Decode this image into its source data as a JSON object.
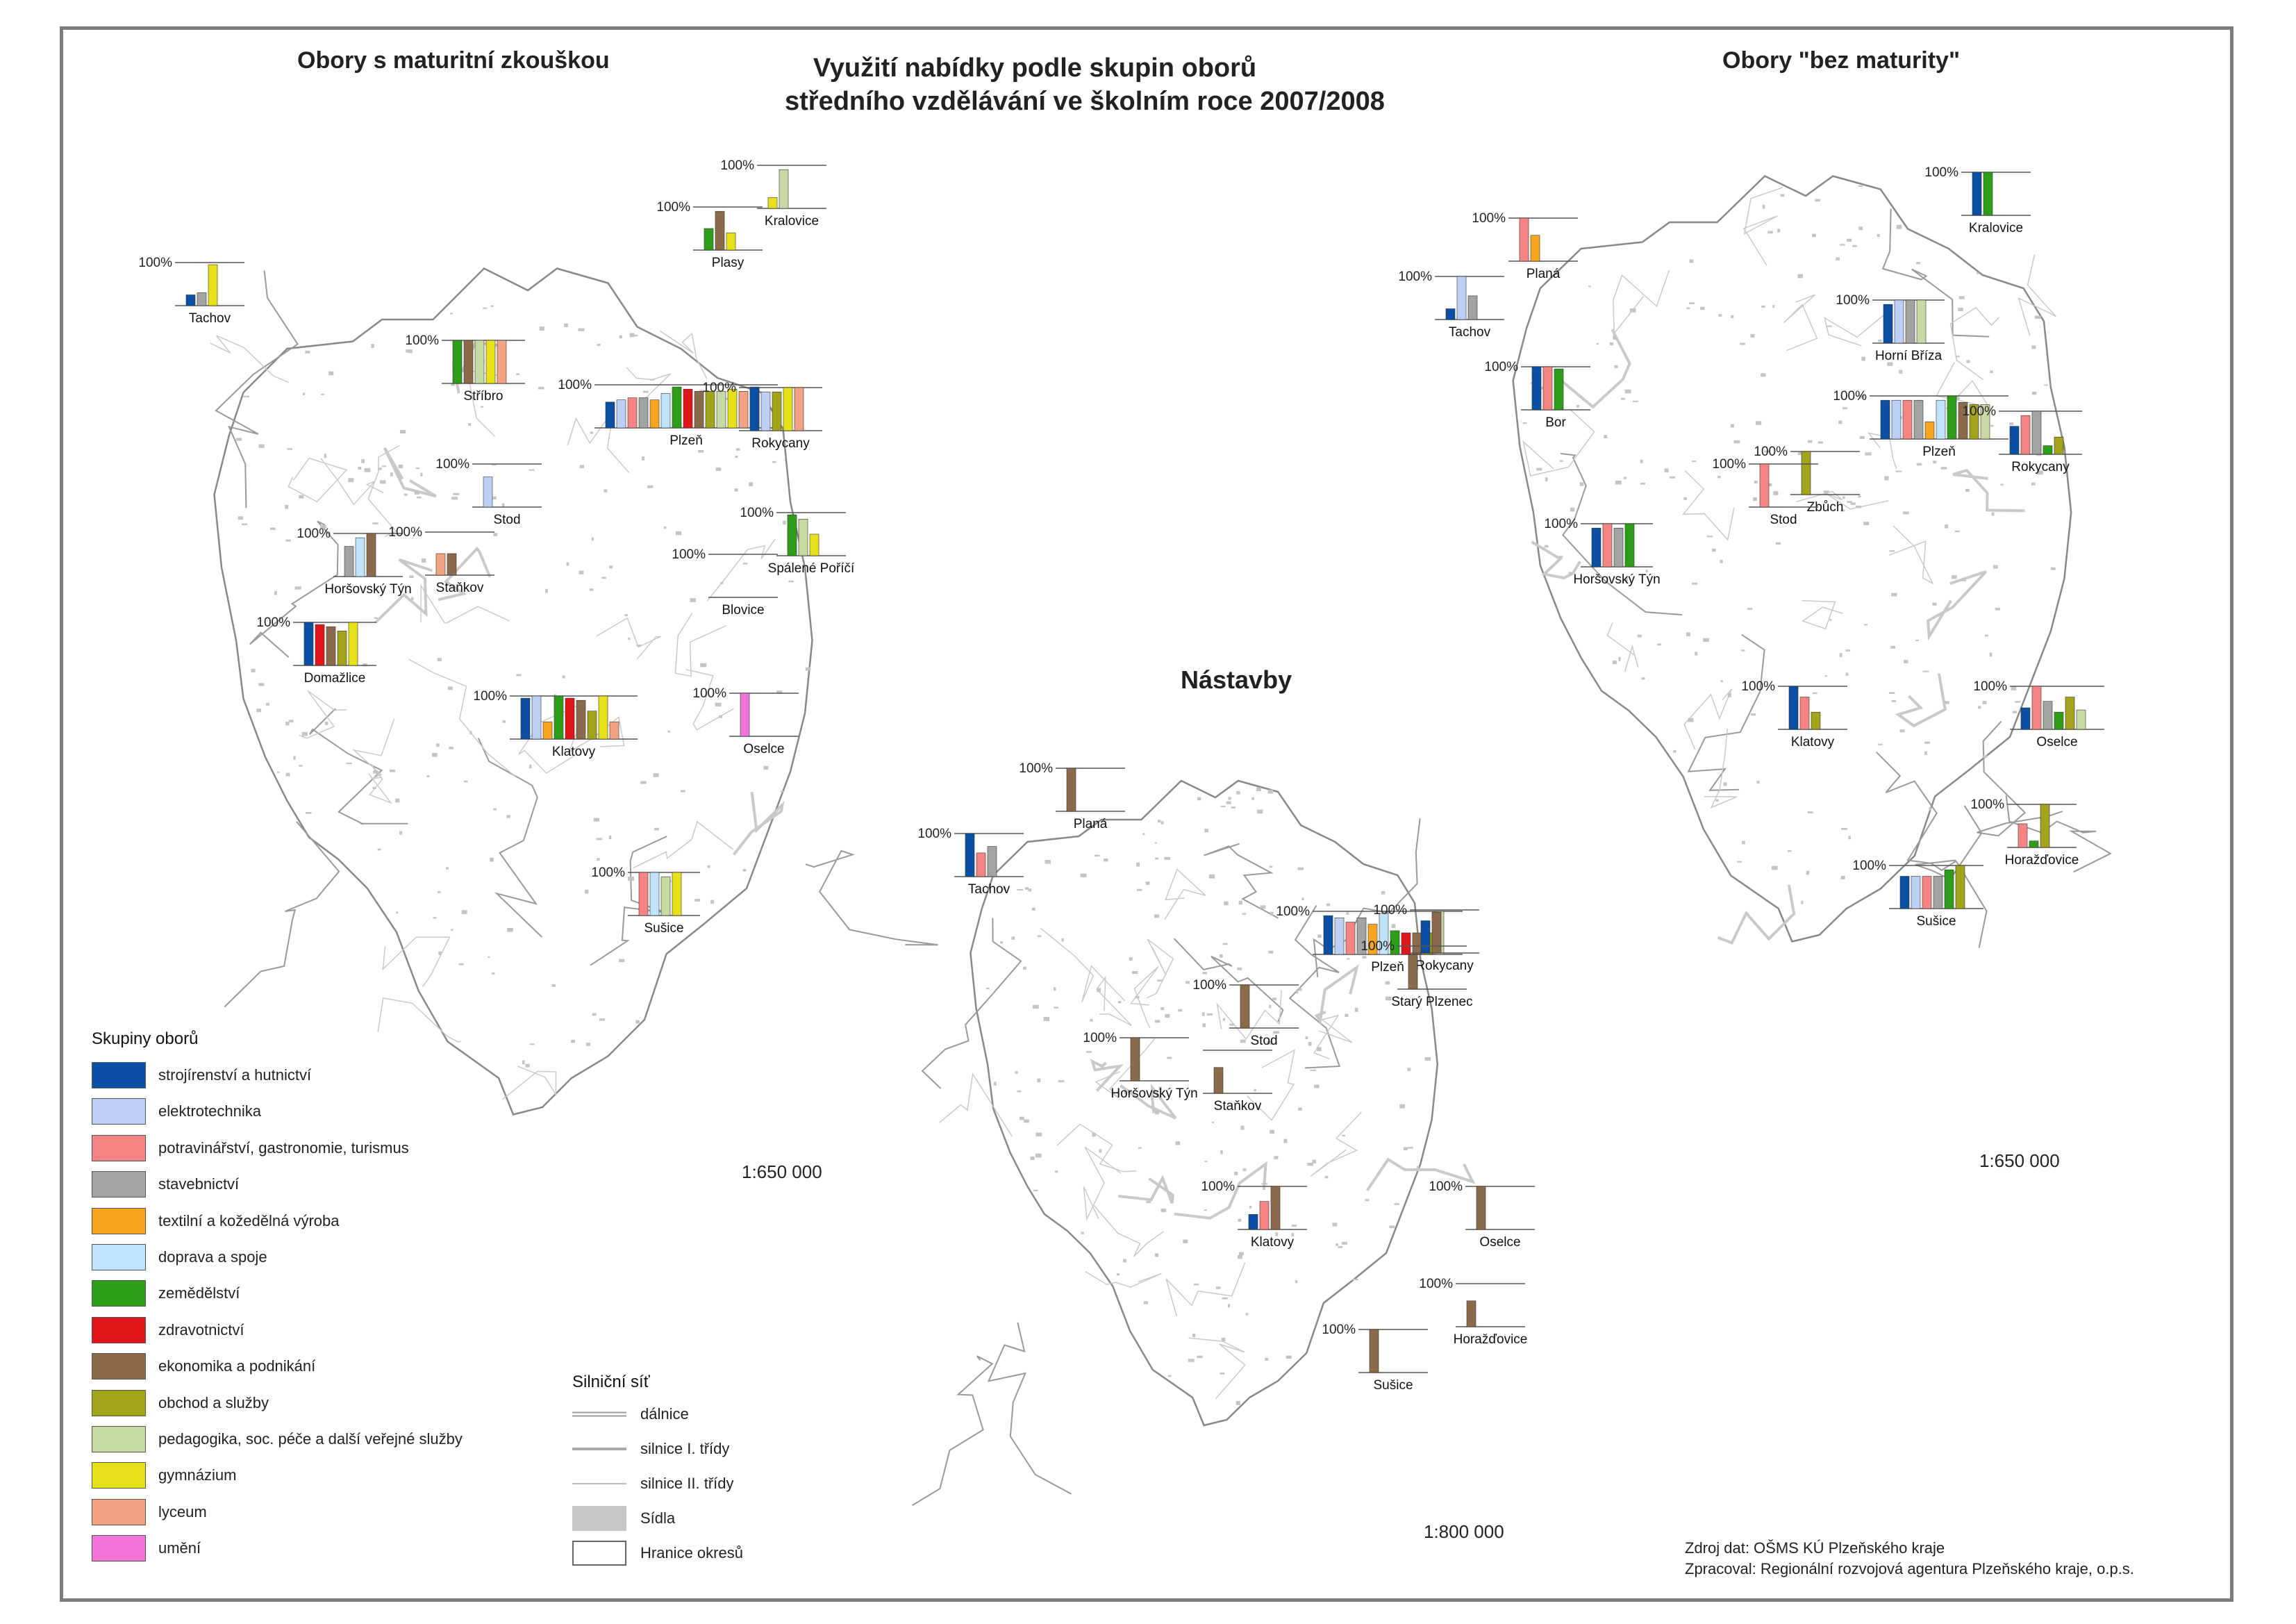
{
  "title": {
    "line1": "Využití nabídky podle skupin oborů",
    "line2": "středního vzdělávání ve školním roce 2007/2008"
  },
  "maps": {
    "maturita": {
      "title": "Obory s maturitní zkouškou",
      "scale": "1:650 000"
    },
    "bez_maturity": {
      "title": "Obory \"bez maturity\"",
      "scale": "1:650 000"
    },
    "nastavby": {
      "title": "Nástavby",
      "scale": "1:800 000"
    }
  },
  "legend": {
    "title": "Skupiny oborů",
    "groups": [
      {
        "label": "strojírenství a hutnictví",
        "color": "#0a4fa3"
      },
      {
        "label": "elektrotechnika",
        "color": "#bccff5"
      },
      {
        "label": "potravinářství, gastronomie, turismus",
        "color": "#f58585"
      },
      {
        "label": "stavebnictví",
        "color": "#a3a3a3"
      },
      {
        "label": "textilní a kožedělná výroba",
        "color": "#f7a520"
      },
      {
        "label": "doprava a spoje",
        "color": "#bfe3fa"
      },
      {
        "label": "zemědělství",
        "color": "#2e9e1a"
      },
      {
        "label": "zdravotnictví",
        "color": "#e0161b"
      },
      {
        "label": "ekonomika a podnikání",
        "color": "#8b6b4a"
      },
      {
        "label": "obchod a služby",
        "color": "#a3a31c"
      },
      {
        "label": "pedagogika, soc. péče a další veřejné služby",
        "color": "#c9d9a3"
      },
      {
        "label": "gymnázium",
        "color": "#e8e01a"
      },
      {
        "label": "lyceum",
        "color": "#f2a383"
      },
      {
        "label": "umění",
        "color": "#f075d6"
      }
    ]
  },
  "roads": {
    "title": "Silniční síť",
    "items": [
      {
        "label": "dálnice",
        "kind": "motorway"
      },
      {
        "label": "silnice I. třídy",
        "kind": "class1"
      },
      {
        "label": "silnice II. třídy",
        "kind": "class2"
      },
      {
        "label": "Sídla",
        "kind": "settlement"
      },
      {
        "label": "Hranice okresů",
        "kind": "boundary"
      }
    ]
  },
  "source": {
    "line1": "Zdroj dat: OŠMS KÚ Plzeňského kraje",
    "line2": "Zpracoval: Regionální rozvojová agentura Plzeňského kraje, o.p.s."
  },
  "full_label": "100%",
  "chart_data": [
    {
      "type": "bar",
      "name": "Obory s maturitní zkouškou",
      "towns": [
        {
          "name": "Tachov",
          "label": "100%",
          "bars": [
            [
              "strojirenstvi",
              0.25
            ],
            [
              "stavebnictvi",
              0.3
            ],
            [
              "gymnazium",
              0.95
            ]
          ]
        },
        {
          "name": "Kralovice",
          "label": "100%",
          "bars": [
            [
              "gymnazium",
              0.25
            ],
            [
              "pedagogika",
              0.9
            ]
          ]
        },
        {
          "name": "Plasy",
          "label": "100%",
          "bars": [
            [
              "zemedelstvi",
              0.5
            ],
            [
              "ekonomika",
              0.9
            ],
            [
              "gymnazium",
              0.4
            ]
          ]
        },
        {
          "name": "Stříbro",
          "label": "100%",
          "bars": [
            [
              "zemedelstvi",
              1.0
            ],
            [
              "ekonomika",
              1.0
            ],
            [
              "pedagogika",
              1.0
            ],
            [
              "gymnazium",
              1.0
            ],
            [
              "lyceum",
              1.0
            ]
          ]
        },
        {
          "name": "Plzeň",
          "label": "100%",
          "bars": [
            [
              "strojirenstvi",
              0.6
            ],
            [
              "elektrotechnika",
              0.65
            ],
            [
              "potravinarstvi",
              0.7
            ],
            [
              "stavebnictvi",
              0.7
            ],
            [
              "textilni",
              0.65
            ],
            [
              "doprava",
              0.8
            ],
            [
              "zemedelstvi",
              0.95
            ],
            [
              "zdravotnictvi",
              0.9
            ],
            [
              "ekonomika",
              0.85
            ],
            [
              "obchod",
              0.85
            ],
            [
              "pedagogika",
              0.85
            ],
            [
              "gymnazium",
              0.9
            ],
            [
              "lyceum",
              0.85
            ],
            [
              "umeni",
              0.95
            ]
          ]
        },
        {
          "name": "Rokycany",
          "label": "100%",
          "bars": [
            [
              "strojirenstvi",
              1.0
            ],
            [
              "elektrotechnika",
              0.9
            ],
            [
              "obchod",
              0.9
            ],
            [
              "gymnazium",
              1.0
            ],
            [
              "lyceum",
              1.0
            ]
          ]
        },
        {
          "name": "Stod",
          "label": "100%",
          "bars": [
            [
              "elektrotechnika",
              0.7
            ]
          ]
        },
        {
          "name": "Horšovský Týn",
          "label": "100%",
          "bars": [
            [
              "stavebnictvi",
              0.7
            ],
            [
              "doprava",
              0.9
            ],
            [
              "ekonomika",
              1.0
            ]
          ]
        },
        {
          "name": "Staňkov",
          "label": "100%",
          "bars": [
            [
              "lyceum",
              0.5
            ],
            [
              "ekonomika",
              0.5
            ]
          ]
        },
        {
          "name": "Spálené Poříčí",
          "label": "100%",
          "bars": [
            [
              "zemedelstvi",
              0.95
            ],
            [
              "pedagogika",
              0.85
            ],
            [
              "gymnazium",
              0.5
            ]
          ]
        },
        {
          "name": "Domažlice",
          "label": "100%",
          "bars": [
            [
              "strojirenstvi",
              1.0
            ],
            [
              "zdravotnictvi",
              0.95
            ],
            [
              "ekonomika",
              0.9
            ],
            [
              "obchod",
              0.8
            ],
            [
              "gymnazium",
              1.0
            ]
          ]
        },
        {
          "name": "Klatovy",
          "label": "100%",
          "bars": [
            [
              "strojirenstvi",
              0.95
            ],
            [
              "elektrotechnika",
              1.0
            ],
            [
              "textilni",
              0.4
            ],
            [
              "zemedelstvi",
              1.0
            ],
            [
              "zdravotnictvi",
              0.95
            ],
            [
              "ekonomika",
              0.9
            ],
            [
              "obchod",
              0.65
            ],
            [
              "gymnazium",
              1.0
            ],
            [
              "lyceum",
              0.4
            ]
          ]
        },
        {
          "name": "Blovice",
          "label": "100%",
          "bars": []
        },
        {
          "name": "Oselce",
          "label": "100%",
          "bars": [
            [
              "umeni",
              1.0
            ]
          ]
        },
        {
          "name": "Sušice",
          "label": "100%",
          "bars": [
            [
              "potravinarstvi",
              1.0
            ],
            [
              "doprava",
              1.0
            ],
            [
              "pedagogika",
              0.9
            ],
            [
              "gymnazium",
              1.0
            ]
          ]
        }
      ]
    },
    {
      "type": "bar",
      "name": "Obory \"bez maturity\"",
      "towns": [
        {
          "name": "Planá",
          "label": "100%",
          "bars": [
            [
              "potravinarstvi",
              1.0
            ],
            [
              "textilni",
              0.6
            ]
          ]
        },
        {
          "name": "Kralovice",
          "label": "100%",
          "bars": [
            [
              "strojirenstvi",
              1.0
            ],
            [
              "zemedelstvi",
              1.0
            ]
          ]
        },
        {
          "name": "Tachov",
          "label": "100%",
          "bars": [
            [
              "strojirenstvi",
              0.25
            ],
            [
              "elektrotechnika",
              1.0
            ],
            [
              "stavebnictvi",
              0.55
            ]
          ]
        },
        {
          "name": "Horní Bříza",
          "label": "100%",
          "bars": [
            [
              "strojirenstvi",
              0.9
            ],
            [
              "elektrotechnika",
              1.0
            ],
            [
              "stavebnictvi",
              1.0
            ],
            [
              "pedagogika",
              1.0
            ]
          ]
        },
        {
          "name": "Bor",
          "label": "100%",
          "bars": [
            [
              "strojirenstvi",
              1.0
            ],
            [
              "potravinarstvi",
              1.0
            ],
            [
              "zemedelstvi",
              0.95
            ]
          ]
        },
        {
          "name": "Plzeň",
          "label": "100%",
          "bars": [
            [
              "strojirenstvi",
              0.9
            ],
            [
              "elektrotechnika",
              0.9
            ],
            [
              "potravinarstvi",
              0.9
            ],
            [
              "stavebnictvi",
              0.9
            ],
            [
              "textilni",
              0.4
            ],
            [
              "doprava",
              0.9
            ],
            [
              "zemedelstvi",
              1.0
            ],
            [
              "ekonomika",
              0.85
            ],
            [
              "obchod",
              0.8
            ],
            [
              "pedagogika",
              0.8
            ]
          ]
        },
        {
          "name": "Rokycany",
          "label": "100%",
          "bars": [
            [
              "strojirenstvi",
              0.65
            ],
            [
              "potravinarstvi",
              0.9
            ],
            [
              "stavebnictvi",
              1.0
            ],
            [
              "zemedelstvi",
              0.2
            ],
            [
              "obchod",
              0.4
            ]
          ]
        },
        {
          "name": "Zbůch",
          "label": "100%",
          "bars": [
            [
              "obchod",
              1.0
            ]
          ]
        },
        {
          "name": "Stod",
          "label": "100%",
          "bars": [
            [
              "potravinarstvi",
              1.0
            ]
          ]
        },
        {
          "name": "Horšovský Týn",
          "label": "100%",
          "bars": [
            [
              "strojirenstvi",
              0.9
            ],
            [
              "potravinarstvi",
              1.0
            ],
            [
              "stavebnictvi",
              0.9
            ],
            [
              "zemedelstvi",
              1.0
            ]
          ]
        },
        {
          "name": "Klatovy",
          "label": "100%",
          "bars": [
            [
              "strojirenstvi",
              1.0
            ],
            [
              "potravinarstvi",
              0.75
            ],
            [
              "obchod",
              0.4
            ]
          ]
        },
        {
          "name": "Oselce",
          "label": "100%",
          "bars": [
            [
              "strojirenstvi",
              0.5
            ],
            [
              "potravinarstvi",
              1.0
            ],
            [
              "stavebnictvi",
              0.65
            ],
            [
              "zemedelstvi",
              0.4
            ],
            [
              "obchod",
              0.75
            ],
            [
              "pedagogika",
              0.45
            ]
          ]
        },
        {
          "name": "Horažďovice",
          "label": "100%",
          "bars": [
            [
              "potravinarstvi",
              0.55
            ],
            [
              "zemedelstvi",
              0.15
            ],
            [
              "obchod",
              1.0
            ]
          ]
        },
        {
          "name": "Sušice",
          "label": "100%",
          "bars": [
            [
              "strojirenstvi",
              0.75
            ],
            [
              "elektrotechnika",
              0.75
            ],
            [
              "potravinarstvi",
              0.75
            ],
            [
              "stavebnictvi",
              0.75
            ],
            [
              "zemedelstvi",
              0.9
            ],
            [
              "obchod",
              1.0
            ]
          ]
        }
      ]
    },
    {
      "type": "bar",
      "name": "Nástavby",
      "towns": [
        {
          "name": "Planá",
          "label": "100%",
          "bars": [
            [
              "ekonomika",
              1.0
            ]
          ]
        },
        {
          "name": "Tachov",
          "label": "100%",
          "bars": [
            [
              "strojirenstvi",
              1.0
            ],
            [
              "potravinarstvi",
              0.55
            ],
            [
              "stavebnictvi",
              0.7
            ]
          ]
        },
        {
          "name": "Plzeň",
          "label": "100%",
          "bars": [
            [
              "strojirenstvi",
              0.9
            ],
            [
              "elektrotechnika",
              0.85
            ],
            [
              "potravinarstvi",
              0.75
            ],
            [
              "stavebnictvi",
              0.85
            ],
            [
              "textilni",
              0.7
            ],
            [
              "doprava",
              0.95
            ],
            [
              "zemedelstvi",
              0.55
            ],
            [
              "zdravotnictvi",
              0.5
            ],
            [
              "ekonomika",
              0.5
            ],
            [
              "obchod",
              0.5
            ],
            [
              "pedagogika",
              1.0
            ]
          ]
        },
        {
          "name": "Rokycany",
          "label": "100%",
          "bars": [
            [
              "strojirenstvi",
              0.75
            ],
            [
              "ekonomika",
              0.95
            ]
          ]
        },
        {
          "name": "Starý Plzenec",
          "label": "100%",
          "bars": [
            [
              "ekonomika",
              0.8
            ]
          ]
        },
        {
          "name": "Stod",
          "label": "100%",
          "bars": [
            [
              "ekonomika",
              1.0
            ]
          ]
        },
        {
          "name": "Horšovský Týn",
          "label": "100%",
          "bars": [
            [
              "ekonomika",
              1.0
            ]
          ]
        },
        {
          "name": "Staňkov",
          "label": "",
          "bars": [
            [
              "ekonomika",
              0.6
            ]
          ]
        },
        {
          "name": "Klatovy",
          "label": "100%",
          "bars": [
            [
              "strojirenstvi",
              0.35
            ],
            [
              "potravinarstvi",
              0.65
            ],
            [
              "ekonomika",
              1.0
            ]
          ]
        },
        {
          "name": "Oselce",
          "label": "100%",
          "bars": [
            [
              "ekonomika",
              1.0
            ]
          ]
        },
        {
          "name": "Horažďovice",
          "label": "100%",
          "bars": [
            [
              "ekonomika",
              0.6
            ]
          ]
        },
        {
          "name": "Sušice",
          "label": "100%",
          "bars": [
            [
              "ekonomika",
              1.0
            ]
          ]
        }
      ]
    }
  ]
}
